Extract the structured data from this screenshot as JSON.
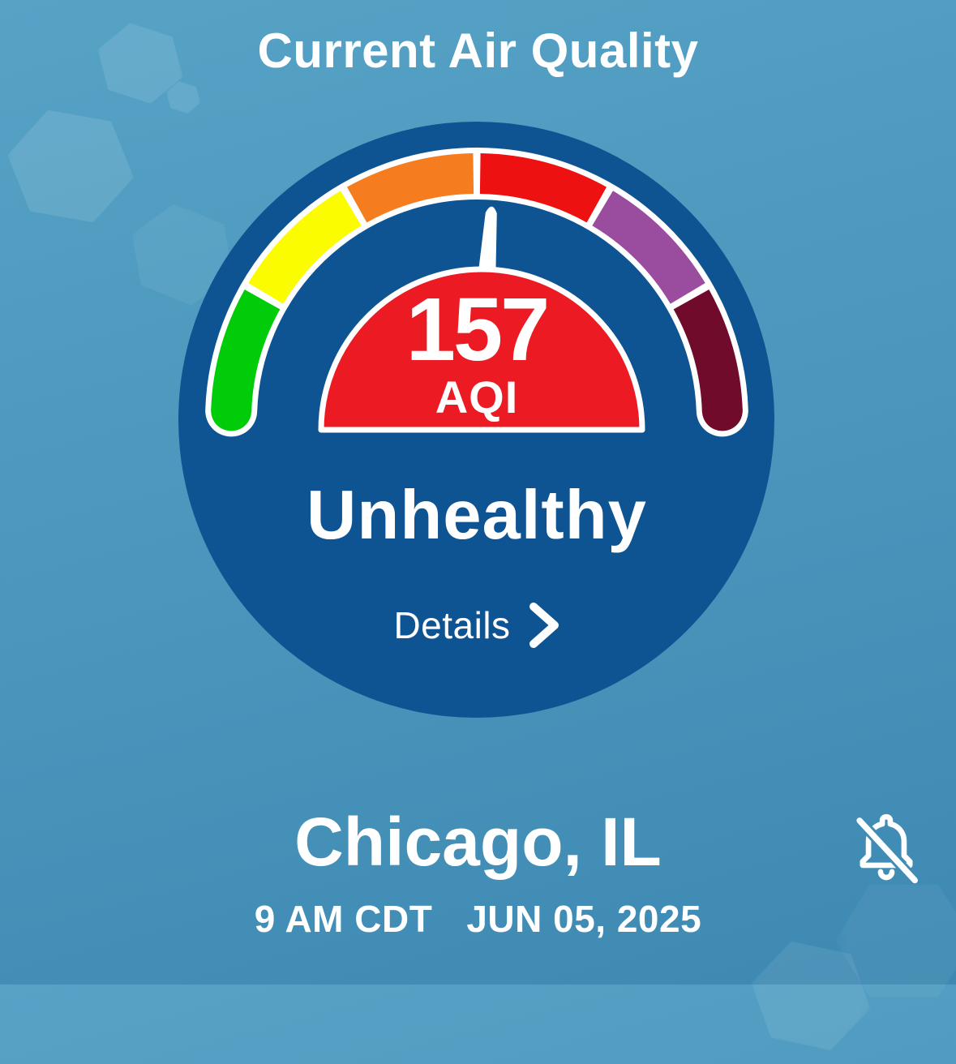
{
  "header": {
    "title": "Current Air Quality"
  },
  "gauge": {
    "value": "157",
    "unit": "AQI",
    "category": "Unhealthy",
    "details_label": "Details",
    "needle_rotation_deg": 4,
    "needle_color": "#ffffff",
    "dome_color": "#ec1b23",
    "track_outline_color": "#ffffff",
    "segments": [
      {
        "name": "good",
        "color": "#00cc0a",
        "start_deg": 178,
        "end_deg": 150.8
      },
      {
        "name": "moderate",
        "color": "#fcfc00",
        "start_deg": 149.2,
        "end_deg": 120.8
      },
      {
        "name": "unhealthy-sensitive-groups",
        "color": "#f57d1f",
        "start_deg": 119.2,
        "end_deg": 90.8
      },
      {
        "name": "unhealthy",
        "color": "#ee1111",
        "start_deg": 89.2,
        "end_deg": 60.8
      },
      {
        "name": "very-unhealthy",
        "color": "#9a4d9e",
        "start_deg": 59.2,
        "end_deg": 30.8
      },
      {
        "name": "hazardous",
        "color": "#700b2c",
        "start_deg": 29.2,
        "end_deg": 2
      }
    ]
  },
  "location": {
    "name": "Chicago, IL",
    "time": "9 AM CDT",
    "date": "JUN 05, 2025"
  },
  "theme": {
    "background_top": "#57a3c6",
    "background_bottom": "#3d89b2",
    "gauge_circle": "#0e5392",
    "text": "#ffffff"
  }
}
